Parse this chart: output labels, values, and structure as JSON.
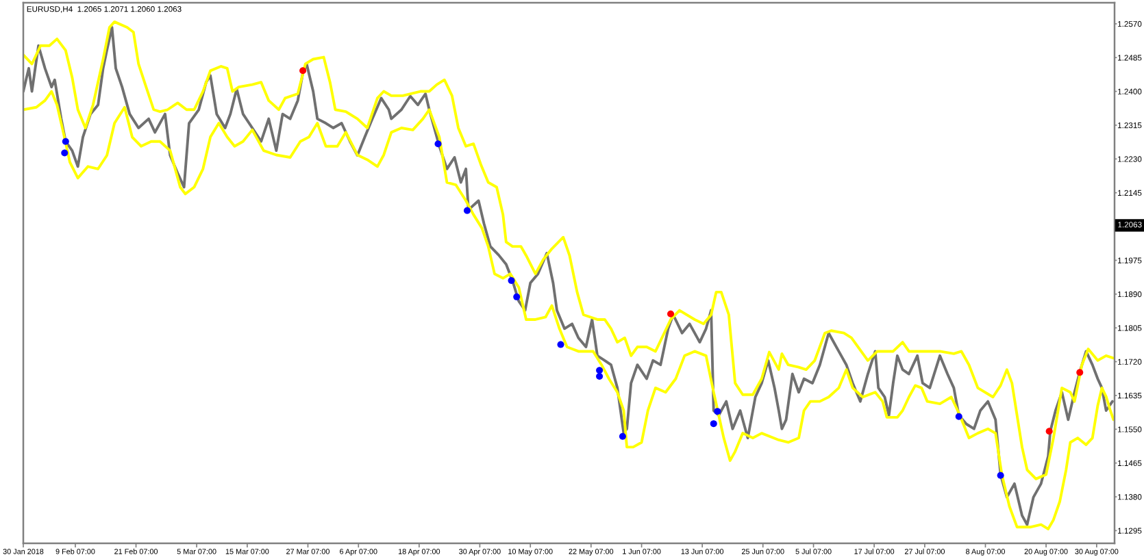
{
  "chart_data": {
    "type": "line",
    "title": "EURUSD,H4  1.2065 1.2071 1.2060 1.2063",
    "xlim": [
      "2018-01-30",
      "2018-09-02T20:00"
    ],
    "xticks": [
      {
        "value": "2018-01-30",
        "label": "30 Jan 2018"
      },
      {
        "value": "2018-02-09T07:00",
        "label": "9 Feb 07:00"
      },
      {
        "value": "2018-02-21T07:00",
        "label": "21 Feb 07:00"
      },
      {
        "value": "2018-03-05T07:00",
        "label": "5 Mar 07:00"
      },
      {
        "value": "2018-03-15T07:00",
        "label": "15 Mar 07:00"
      },
      {
        "value": "2018-03-27T07:00",
        "label": "27 Mar 07:00"
      },
      {
        "value": "2018-04-06T07:00",
        "label": "6 Apr 07:00"
      },
      {
        "value": "2018-04-18T07:00",
        "label": "18 Apr 07:00"
      },
      {
        "value": "2018-04-30T07:00",
        "label": "30 Apr 07:00"
      },
      {
        "value": "2018-05-10T07:00",
        "label": "10 May 07:00"
      },
      {
        "value": "2018-05-22T07:00",
        "label": "22 May 07:00"
      },
      {
        "value": "2018-06-01T07:00",
        "label": "1 Jun 07:00"
      },
      {
        "value": "2018-06-13T07:00",
        "label": "13 Jun 07:00"
      },
      {
        "value": "2018-06-25T07:00",
        "label": "25 Jun 07:00"
      },
      {
        "value": "2018-07-05T07:00",
        "label": "5 Jul 07:00"
      },
      {
        "value": "2018-07-17T07:00",
        "label": "17 Jul 07:00"
      },
      {
        "value": "2018-07-27T07:00",
        "label": "27 Jul 07:00"
      },
      {
        "value": "2018-08-08T07:00",
        "label": "8 Aug 07:00"
      },
      {
        "value": "2018-08-20T07:00",
        "label": "20 Aug 07:00"
      },
      {
        "value": "2018-08-30T07:00",
        "label": "30 Aug 07:00"
      }
    ],
    "ylim": [
      1.1263,
      1.2623
    ],
    "yticks": [
      {
        "value": 1.257,
        "label": "1.2570"
      },
      1.2485,
      {
        "value": 1.24,
        "label": "1.2400"
      },
      1.2315,
      {
        "value": 1.223,
        "label": "1.2230"
      },
      1.2145,
      1.1975,
      {
        "value": 1.189,
        "label": "1.1890"
      },
      1.1805,
      {
        "value": 1.172,
        "label": "1.1720"
      },
      1.1635,
      {
        "value": 1.155,
        "label": "1.1550"
      },
      1.1465,
      {
        "value": 1.138,
        "label": "1.1380"
      },
      1.1295
    ],
    "annotations": [
      {
        "text": "1.2063",
        "y": 1.2063
      }
    ],
    "series": [
      {
        "color": "#707070",
        "x": [
          "2018-01-30T00:00",
          "2018-01-31T02:00",
          "2018-01-31T17:00",
          "2018-02-02T00:00",
          "2018-02-03T07:00",
          "2018-02-04T14:00",
          "2018-02-05T05:00",
          "2018-02-06T12:00",
          "2018-02-07T09:00",
          "2018-02-08T16:00",
          "2018-02-09T19:00",
          "2018-02-10T19:00",
          "2018-02-12T07:00",
          "2018-02-13T19:00",
          "2018-02-14T19:00",
          "2018-02-15T13:00",
          "2018-02-16T13:00",
          "2018-02-17T07:00",
          "2018-02-18T13:00",
          "2018-02-20T01:00",
          "2018-02-21T19:00",
          "2018-02-23T19:00",
          "2018-02-25T01:00",
          "2018-02-27T01:00",
          "2018-02-28T01:00",
          "2018-03-01T13:00",
          "2018-03-02T19:00",
          "2018-03-03T19:00",
          "2018-03-05T17:00",
          "2018-03-07T04:00",
          "2018-03-08T00:00",
          "2018-03-09T06:00",
          "2018-03-10T22:00",
          "2018-03-11T23:00",
          "2018-03-13T05:00",
          "2018-03-14T11:00",
          "2018-03-16T07:00",
          "2018-03-18T01:00",
          "2018-03-19T13:00",
          "2018-03-21T01:00",
          "2018-03-22T07:00",
          "2018-03-23T19:00",
          "2018-03-25T07:00",
          "2018-03-26T07:00",
          "2018-03-27T01:00",
          "2018-03-28T08:00",
          "2018-03-29T04:00",
          "2018-03-30T20:00",
          "2018-04-01T07:00",
          "2018-04-02T23:00",
          "2018-04-04T15:00",
          "2018-04-06T02:00",
          "2018-04-07T13:00",
          "2018-04-09T01:00",
          "2018-04-10T19:00",
          "2018-04-12T07:00",
          "2018-04-12T19:00",
          "2018-04-14T19:00",
          "2018-04-16T13:00",
          "2018-04-18T01:00",
          "2018-04-19T13:00",
          "2018-04-20T07:00",
          "2018-04-21T07:00",
          "2018-04-22T07:00",
          "2018-04-23T19:00",
          "2018-04-25T07:00",
          "2018-04-26T13:00",
          "2018-04-27T13:00",
          "2018-04-28T01:00",
          "2018-04-30T01:00",
          "2018-05-01T03:00",
          "2018-05-02T09:00",
          "2018-05-04T01:00",
          "2018-05-05T12:00",
          "2018-05-06T18:00",
          "2018-05-08T00:00",
          "2018-05-09T06:00",
          "2018-05-10T07:00",
          "2018-05-11T19:00",
          "2018-05-13T13:00",
          "2018-05-14T19:00",
          "2018-05-15T13:00",
          "2018-05-17T01:00",
          "2018-05-18T13:00",
          "2018-05-19T19:00",
          "2018-05-21T07:00",
          "2018-05-22T12:00",
          "2018-05-23T13:00",
          "2018-05-25T00:00",
          "2018-05-26T06:00",
          "2018-05-27T12:00",
          "2018-05-28T18:00",
          "2018-05-29T09:00",
          "2018-05-30T05:00",
          "2018-05-31T11:00",
          "2018-06-02T07:00",
          "2018-06-03T13:00",
          "2018-06-05T01:00",
          "2018-06-06T13:00",
          "2018-06-07T13:00",
          "2018-06-09T07:00",
          "2018-06-10T19:00",
          "2018-06-12T19:00",
          "2018-06-14T01:00",
          "2018-06-15T01:00",
          "2018-06-15T13:00",
          "2018-06-16T13:00",
          "2018-06-18T01:00",
          "2018-06-19T07:00",
          "2018-06-20T19:00",
          "2018-06-22T07:00",
          "2018-06-23T19:00",
          "2018-06-25T01:00",
          "2018-06-26T08:00",
          "2018-06-27T14:00",
          "2018-06-28T10:00",
          "2018-06-29T01:00",
          "2018-06-29T21:00",
          "2018-07-01T03:00",
          "2018-07-02T09:00",
          "2018-07-03T10:00",
          "2018-07-05T02:00",
          "2018-07-06T13:00",
          "2018-07-08T07:00",
          "2018-07-10T07:00",
          "2018-07-11T19:00",
          "2018-07-13T01:00",
          "2018-07-14T13:00",
          "2018-07-16T01:00",
          "2018-07-17T12:00",
          "2018-07-18T03:00",
          "2018-07-19T09:00",
          "2018-07-20T05:00",
          "2018-07-21T01:00",
          "2018-07-21T21:00",
          "2018-07-22T22:00",
          "2018-07-24T04:00",
          "2018-07-25T20:00",
          "2018-07-26T21:00",
          "2018-07-28T07:00",
          "2018-07-30T07:00",
          "2018-07-31T19:00",
          "2018-08-02T01:00",
          "2018-08-03T01:00",
          "2018-08-04T13:00",
          "2018-08-06T01:00",
          "2018-08-07T07:00",
          "2018-08-08T19:00",
          "2018-08-10T07:00",
          "2018-08-11T07:00",
          "2018-08-12T13:00",
          "2018-08-14T01:00",
          "2018-08-15T13:00",
          "2018-08-16T13:00",
          "2018-08-17T19:00",
          "2018-08-19T07:00",
          "2018-08-20T17:00",
          "2018-08-21T03:00",
          "2018-08-22T04:00",
          "2018-08-23T10:00",
          "2018-08-24T16:00",
          "2018-08-25T22:00",
          "2018-08-26T23:00",
          "2018-08-28T05:00",
          "2018-08-29T11:00",
          "2018-08-30T12:00",
          "2018-08-31T08:00",
          "2018-09-01T04:00",
          "2018-09-02T10:00"
        ],
        "values": [
          1.24,
          1.2458,
          1.24,
          1.2515,
          1.2458,
          1.2411,
          1.2429,
          1.2331,
          1.2274,
          1.2251,
          1.2211,
          1.2285,
          1.2343,
          1.2366,
          1.2458,
          1.2504,
          1.2561,
          1.2458,
          1.2411,
          1.2343,
          1.2308,
          1.2331,
          1.2297,
          1.2343,
          1.2239,
          1.2194,
          1.2159,
          1.232,
          1.2354,
          1.2423,
          1.244,
          1.2343,
          1.2308,
          1.2343,
          1.2406,
          1.2343,
          1.2308,
          1.2274,
          1.2331,
          1.2251,
          1.2343,
          1.2331,
          1.2377,
          1.2446,
          1.2469,
          1.24,
          1.2331,
          1.232,
          1.2308,
          1.232,
          1.2274,
          1.2239,
          1.2285,
          1.2331,
          1.2383,
          1.2354,
          1.2331,
          1.2354,
          1.2388,
          1.2366,
          1.2394,
          1.2354,
          1.2308,
          1.2262,
          1.2205,
          1.2234,
          1.2171,
          1.2205,
          1.2102,
          1.2125,
          1.2067,
          1.201,
          1.1988,
          1.1965,
          1.1924,
          1.1872,
          1.1849,
          1.1918,
          1.1941,
          1.1993,
          1.1918,
          1.1849,
          1.1803,
          1.1815,
          1.178,
          1.1757,
          1.1826,
          1.1735,
          1.1723,
          1.1712,
          1.1654,
          1.154,
          1.1551,
          1.1666,
          1.1712,
          1.1677,
          1.1723,
          1.1712,
          1.1803,
          1.1838,
          1.1792,
          1.1815,
          1.1769,
          1.1803,
          1.1849,
          1.1597,
          1.1585,
          1.162,
          1.1551,
          1.1597,
          1.1528,
          1.1631,
          1.1666,
          1.1723,
          1.1654,
          1.1597,
          1.1551,
          1.1574,
          1.1689,
          1.1643,
          1.1677,
          1.1666,
          1.1712,
          1.1792,
          1.1746,
          1.1712,
          1.1666,
          1.162,
          1.1689,
          1.1746,
          1.1654,
          1.1631,
          1.1585,
          1.1666,
          1.1735,
          1.17,
          1.1689,
          1.1735,
          1.1666,
          1.1654,
          1.1735,
          1.1689,
          1.1654,
          1.1585,
          1.1563,
          1.1551,
          1.1597,
          1.162,
          1.1574,
          1.1436,
          1.1379,
          1.1413,
          1.1333,
          1.131,
          1.1379,
          1.1413,
          1.1482,
          1.1545,
          1.1597,
          1.1643,
          1.1574,
          1.1643,
          1.1694,
          1.1746,
          1.1712,
          1.1677,
          1.1654,
          1.1597,
          1.162
        ]
      },
      {
        "type": "line",
        "color": "#ffff00",
        "x": [
          "2018-01-30T00:00",
          "2018-01-31T17:00",
          "2018-02-02T10:00",
          "2018-02-04T04:00",
          "2018-02-05T16:00",
          "2018-02-07T09:00",
          "2018-02-08T16:00",
          "2018-02-09T19:00",
          "2018-02-11T07:00",
          "2018-02-12T19:00",
          "2018-02-14T19:00",
          "2018-02-16T01:00",
          "2018-02-17T01:00",
          "2018-02-19T13:00",
          "2018-02-20T19:00",
          "2018-02-21T19:00",
          "2018-02-23T07:00",
          "2018-02-24T19:00",
          "2018-02-26T01:00",
          "2018-02-27T13:00",
          "2018-03-01T13:00",
          "2018-03-03T07:00",
          "2018-03-04T19:00",
          "2018-03-06T13:00",
          "2018-03-08T00:00",
          "2018-03-10T02:00",
          "2018-03-11T08:00",
          "2018-03-12T09:00",
          "2018-03-13T15:00",
          "2018-03-16T07:00",
          "2018-03-18T01:00",
          "2018-03-19T13:00",
          "2018-03-21T13:00",
          "2018-03-22T19:00",
          "2018-03-25T07:00",
          "2018-03-26T19:00",
          "2018-03-28T08:00",
          "2018-03-30T10:00",
          "2018-03-31T16:00",
          "2018-04-01T17:00",
          "2018-04-03T19:00",
          "2018-04-06T02:00",
          "2018-04-08T01:00",
          "2018-04-10T01:00",
          "2018-04-11T07:00",
          "2018-04-12T19:00",
          "2018-04-15T01:00",
          "2018-04-18T13:00",
          "2018-04-20T07:00",
          "2018-04-21T19:00",
          "2018-04-23T07:00",
          "2018-04-24T19:00",
          "2018-04-26T01:00",
          "2018-04-27T13:00",
          "2018-04-29T01:00",
          "2018-04-30T12:00",
          "2018-05-01T23:00",
          "2018-05-03T15:00",
          "2018-05-04T21:00",
          "2018-05-05T12:00",
          "2018-05-06T18:00",
          "2018-05-08T10:00",
          "2018-05-09T11:00",
          "2018-05-11T07:00",
          "2018-05-12T19:00",
          "2018-05-14T13:00",
          "2018-05-16T19:00",
          "2018-05-18T01:00",
          "2018-05-19T13:00",
          "2018-05-20T19:00",
          "2018-05-23T13:00",
          "2018-05-25T00:00",
          "2018-05-26T06:00",
          "2018-05-27T12:00",
          "2018-05-28T23:00",
          "2018-05-30T05:00",
          "2018-05-31T11:00",
          "2018-06-02T07:00",
          "2018-06-04T01:00",
          "2018-06-07T01:00",
          "2018-06-08T19:00",
          "2018-06-11T19:00",
          "2018-06-13T13:00",
          "2018-06-15T01:00",
          "2018-06-16T01:00",
          "2018-06-17T01:00",
          "2018-06-18T13:00",
          "2018-06-19T19:00",
          "2018-06-21T07:00",
          "2018-06-23T07:00",
          "2018-06-25T01:00",
          "2018-06-26T13:00",
          "2018-06-28T10:00",
          "2018-06-29T01:00",
          "2018-06-30T07:00",
          "2018-07-02T09:00",
          "2018-07-03T20:00",
          "2018-07-05T13:00",
          "2018-07-07T13:00",
          "2018-07-08T19:00",
          "2018-07-11T07:00",
          "2018-07-12T19:00",
          "2018-07-16T01:00",
          "2018-07-17T22:00",
          "2018-07-21T01:00",
          "2018-07-22T22:00",
          "2018-07-24T04:00",
          "2018-07-27T07:00",
          "2018-07-30T07:00",
          "2018-08-02T01:00",
          "2018-08-03T13:00",
          "2018-08-05T01:00",
          "2018-08-06T19:00",
          "2018-08-09T19:00",
          "2018-08-11T07:00",
          "2018-08-12T13:00",
          "2018-08-13T13:00",
          "2018-08-15T13:00",
          "2018-08-16T13:00",
          "2018-08-18T07:00",
          "2018-08-20T07:00",
          "2018-08-21T18:00",
          "2018-08-23T10:00",
          "2018-08-25T02:00",
          "2018-08-25T22:00",
          "2018-08-27T09:00",
          "2018-08-28T15:00",
          "2018-08-30T12:00",
          "2018-09-01T04:00",
          "2018-09-02T15:00"
        ],
        "values": [
          1.2492,
          1.2469,
          1.2515,
          1.2515,
          1.2532,
          1.2503,
          1.2435,
          1.2354,
          1.2308,
          1.2366,
          1.2481,
          1.2561,
          1.2575,
          1.2561,
          1.2549,
          1.2469,
          1.2411,
          1.2354,
          1.2349,
          1.2354,
          1.2371,
          1.2354,
          1.2354,
          1.24,
          1.2452,
          1.2463,
          1.2458,
          1.24,
          1.2411,
          1.2417,
          1.2423,
          1.2377,
          1.2354,
          1.2383,
          1.2394,
          1.2469,
          1.2481,
          1.2486,
          1.2423,
          1.2354,
          1.2349,
          1.2331,
          1.2308,
          1.2383,
          1.24,
          1.2389,
          1.2389,
          1.24,
          1.24,
          1.2417,
          1.2429,
          1.2389,
          1.2308,
          1.2262,
          1.2268,
          1.2216,
          1.2171,
          1.2159,
          1.209,
          1.2021,
          1.201,
          1.201,
          1.1987,
          1.1941,
          1.1976,
          1.2004,
          1.2033,
          1.1987,
          1.1895,
          1.1838,
          1.1826,
          1.1826,
          1.1803,
          1.1769,
          1.178,
          1.1735,
          1.1757,
          1.1757,
          1.1746,
          1.1826,
          1.1849,
          1.1826,
          1.1815,
          1.1838,
          1.1895,
          1.1895,
          1.1838,
          1.1666,
          1.1637,
          1.1637,
          1.1677,
          1.1744,
          1.17,
          1.174,
          1.1712,
          1.1706,
          1.17,
          1.1723,
          1.1792,
          1.1798,
          1.1792,
          1.178,
          1.1723,
          1.1746,
          1.1746,
          1.1769,
          1.1746,
          1.1746,
          1.1746,
          1.174,
          1.1746,
          1.1712,
          1.1654,
          1.1631,
          1.166,
          1.17,
          1.1666,
          1.1505,
          1.1448,
          1.1425,
          1.1436,
          1.1528,
          1.1654,
          1.1643,
          1.162,
          1.1712,
          1.1752,
          1.1723,
          1.1735,
          1.1729
        ]
      },
      {
        "type": "line",
        "color": "#ffff00",
        "x": [
          "2018-01-30T00:00",
          "2018-02-01T14:00",
          "2018-02-03T07:00",
          "2018-02-04T14:00",
          "2018-02-05T16:00",
          "2018-02-06T22:00",
          "2018-02-08T05:00",
          "2018-02-09T19:00",
          "2018-02-11T19:00",
          "2018-02-13T19:00",
          "2018-02-15T13:00",
          "2018-02-17T01:00",
          "2018-02-19T01:00",
          "2018-02-20T13:00",
          "2018-02-22T07:00",
          "2018-02-24T07:00",
          "2018-02-26T01:00",
          "2018-02-28T01:00",
          "2018-03-02T01:00",
          "2018-03-03T01:00",
          "2018-03-04T19:00",
          "2018-03-06T13:00",
          "2018-03-08T00:00",
          "2018-03-09T16:00",
          "2018-03-11T08:00",
          "2018-03-12T19:00",
          "2018-03-14T11:00",
          "2018-03-16T07:00",
          "2018-03-18T13:00",
          "2018-03-21T01:00",
          "2018-03-23T19:00",
          "2018-03-25T19:00",
          "2018-03-27T12:00",
          "2018-03-29T04:00",
          "2018-03-30T20:00",
          "2018-04-02T03:00",
          "2018-04-03T19:00",
          "2018-04-06T02:00",
          "2018-04-08T01:00",
          "2018-04-10T01:00",
          "2018-04-11T07:00",
          "2018-04-12T19:00",
          "2018-04-14T19:00",
          "2018-04-17T01:00",
          "2018-04-19T01:00",
          "2018-04-20T07:00",
          "2018-04-22T07:00",
          "2018-04-23T19:00",
          "2018-04-25T13:00",
          "2018-04-27T13:00",
          "2018-04-29T01:00",
          "2018-04-30T17:00",
          "2018-05-01T23:00",
          "2018-05-03T05:00",
          "2018-05-04T21:00",
          "2018-05-06T08:00",
          "2018-05-08T00:00",
          "2018-05-09T11:00",
          "2018-05-11T07:00",
          "2018-05-13T07:00",
          "2018-05-14T13:00",
          "2018-05-16T01:00",
          "2018-05-17T13:00",
          "2018-05-19T19:00",
          "2018-05-22T17:00",
          "2018-05-24T09:00",
          "2018-05-25T20:00",
          "2018-05-27T12:00",
          "2018-05-28T18:00",
          "2018-05-29T09:00",
          "2018-05-30T15:00",
          "2018-06-01T07:00",
          "2018-06-02T13:00",
          "2018-06-04T01:00",
          "2018-06-06T01:00",
          "2018-06-08T01:00",
          "2018-06-09T19:00",
          "2018-06-11T19:00",
          "2018-06-14T01:00",
          "2018-06-15T13:00",
          "2018-06-17T13:00",
          "2018-06-18T19:00",
          "2018-06-19T19:00",
          "2018-06-21T07:00",
          "2018-06-23T07:00",
          "2018-06-25T01:00",
          "2018-06-28T10:00",
          "2018-06-30T07:00",
          "2018-07-02T09:00",
          "2018-07-03T10:00",
          "2018-07-04T16:00",
          "2018-07-06T13:00",
          "2018-07-08T07:00",
          "2018-07-10T07:00",
          "2018-07-11T19:00",
          "2018-07-13T01:00",
          "2018-07-15T01:00",
          "2018-07-17T12:00",
          "2018-07-18T23:00",
          "2018-07-19T19:00",
          "2018-07-21T21:00",
          "2018-07-22T22:00",
          "2018-07-24T04:00",
          "2018-07-25T10:00",
          "2018-07-26T16:00",
          "2018-07-27T19:00",
          "2018-07-30T07:00",
          "2018-08-01T13:00",
          "2018-08-03T01:00",
          "2018-08-05T01:00",
          "2018-08-06T19:00",
          "2018-08-08T19:00",
          "2018-08-10T07:00",
          "2018-08-11T13:00",
          "2018-08-13T01:00",
          "2018-08-14T13:00",
          "2018-08-17T07:00",
          "2018-08-19T07:00",
          "2018-08-20T17:00",
          "2018-08-21T18:00",
          "2018-08-23T00:00",
          "2018-08-24T06:00",
          "2018-08-25T02:00",
          "2018-08-26T13:00",
          "2018-08-28T05:00",
          "2018-08-29T11:00",
          "2018-08-30T12:00",
          "2018-08-31T08:00",
          "2018-09-01T04:00",
          "2018-09-02T00:00",
          "2018-09-02T15:00"
        ],
        "values": [
          1.2354,
          1.236,
          1.2377,
          1.24,
          1.2366,
          1.2297,
          1.2222,
          1.2182,
          1.2211,
          1.2205,
          1.2239,
          1.232,
          1.236,
          1.2285,
          1.2262,
          1.2274,
          1.2274,
          1.2251,
          1.2159,
          1.2142,
          1.2159,
          1.2205,
          1.2285,
          1.232,
          1.2285,
          1.2262,
          1.2274,
          1.2303,
          1.2251,
          1.224,
          1.2234,
          1.2274,
          1.2285,
          1.232,
          1.2262,
          1.2262,
          1.2297,
          1.224,
          1.2228,
          1.2211,
          1.224,
          1.2297,
          1.2308,
          1.2303,
          1.2331,
          1.2354,
          1.2285,
          1.2171,
          1.2165,
          1.2125,
          1.209,
          1.2056,
          1.201,
          1.1941,
          1.193,
          1.1941,
          1.1907,
          1.1826,
          1.1826,
          1.1832,
          1.1861,
          1.1803,
          1.1757,
          1.1746,
          1.1746,
          1.1712,
          1.1677,
          1.1643,
          1.1597,
          1.1505,
          1.1505,
          1.1517,
          1.1597,
          1.1654,
          1.1643,
          1.1677,
          1.1735,
          1.1746,
          1.1735,
          1.1643,
          1.1528,
          1.1471,
          1.1494,
          1.154,
          1.1528,
          1.154,
          1.1523,
          1.1517,
          1.1528,
          1.1597,
          1.162,
          1.162,
          1.1631,
          1.1654,
          1.17,
          1.1654,
          1.1631,
          1.1643,
          1.162,
          1.158,
          1.158,
          1.1597,
          1.1631,
          1.166,
          1.1654,
          1.162,
          1.1614,
          1.1631,
          1.1591,
          1.1528,
          1.154,
          1.1551,
          1.154,
          1.1436,
          1.1356,
          1.1304,
          1.1304,
          1.131,
          1.1299,
          1.1322,
          1.1368,
          1.1448,
          1.1517,
          1.1528,
          1.1511,
          1.1528,
          1.1609,
          1.1654,
          1.1632,
          1.1597,
          1.1574
        ]
      },
      {
        "type": "scatter",
        "color": "#0000ff",
        "marker": "circle",
        "x": [
          "2018-02-07T04:00",
          "2018-02-07T09:00",
          "2018-04-22T01:00",
          "2018-04-27T19:00",
          "2018-05-06T13:00",
          "2018-05-07T14:00",
          "2018-05-16T07:00",
          "2018-05-23T23:00",
          "2018-05-23T23:00",
          "2018-05-28T13:00",
          "2018-06-15T13:00",
          "2018-06-16T07:00",
          "2018-08-03T01:00",
          "2018-08-11T07:00"
        ],
        "values": [
          1.2245,
          1.2274,
          1.2268,
          1.21,
          1.1924,
          1.1883,
          1.1763,
          1.1698,
          1.1683,
          1.1532,
          1.1564,
          1.1595,
          1.1582,
          1.1434
        ]
      },
      {
        "type": "scatter",
        "color": "#ff0000",
        "marker": "circle",
        "x": [
          "2018-03-26T07:00",
          "2018-06-07T01:00",
          "2018-08-20T22:00",
          "2018-08-26T23:00"
        ],
        "values": [
          1.2452,
          1.184,
          1.1545,
          1.1693
        ]
      }
    ]
  }
}
